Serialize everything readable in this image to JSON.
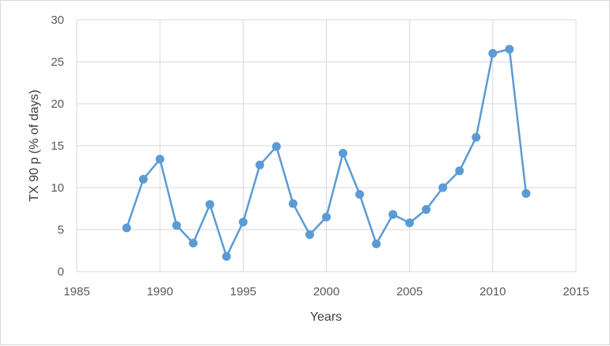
{
  "chart_data": {
    "type": "scatter",
    "title": "",
    "xlabel": "Years",
    "ylabel": "TX 90 p (% of days)",
    "xlim": [
      1985,
      2015
    ],
    "ylim": [
      0,
      30
    ],
    "xticks": [
      1985,
      1990,
      1995,
      2000,
      2005,
      2010,
      2015
    ],
    "yticks": [
      0,
      5,
      10,
      15,
      20,
      25,
      30
    ],
    "grid": true,
    "legend": "none",
    "series": [
      {
        "color": "#5b9bd5",
        "x": [
          1988,
          1989,
          1990,
          1991,
          1992,
          1993,
          1994,
          1995,
          1996,
          1997,
          1998,
          1999,
          2000,
          2001,
          2002,
          2003,
          2004,
          2005,
          2006,
          2007,
          2008,
          2009,
          2010,
          2011,
          2012
        ],
        "y": [
          5.2,
          11.0,
          13.4,
          5.5,
          3.4,
          8.0,
          1.8,
          5.9,
          12.7,
          14.9,
          8.1,
          4.4,
          6.5,
          14.1,
          9.2,
          3.3,
          6.8,
          5.8,
          7.4,
          10.0,
          12.0,
          16.0,
          26.0,
          26.5,
          9.3
        ]
      }
    ]
  }
}
